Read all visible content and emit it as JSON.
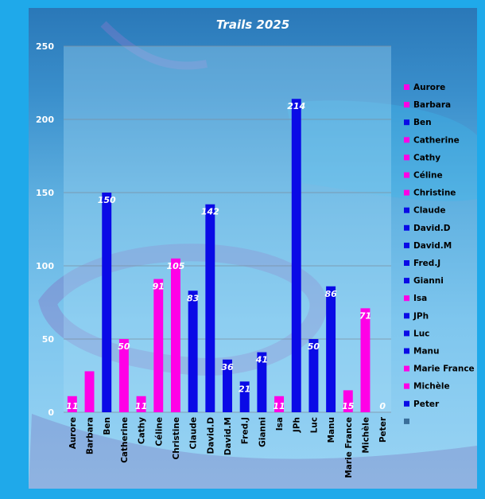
{
  "chart_data": {
    "type": "bar",
    "title": "Trails 2025",
    "xlabel": "",
    "ylabel": "",
    "ylim": [
      0,
      250
    ],
    "yticks": [
      0,
      50,
      100,
      150,
      200,
      250
    ],
    "grid": true,
    "legend_position": "right",
    "categories": [
      "Aurore",
      "Barbara",
      "Ben",
      "Catherine",
      "Cathy",
      "Céline",
      "Christine",
      "Claude",
      "David.D",
      "David.M",
      "Fred.J",
      "Gianni",
      "Isa",
      "JPh",
      "Luc",
      "Manu",
      "Marie France",
      "Michèle",
      "Peter"
    ],
    "values": [
      11,
      28,
      150,
      50,
      11,
      91,
      105,
      83,
      142,
      36,
      21,
      41,
      11,
      214,
      50,
      86,
      15,
      71,
      0
    ],
    "data_labels": [
      "11",
      "",
      "150",
      "50",
      "11",
      "91",
      "105",
      "83",
      "142",
      "36",
      "21",
      "41",
      "11",
      "214",
      "50",
      "86",
      "15",
      "71",
      "0"
    ],
    "bar_colors": [
      "#ff00e6",
      "#ff00e6",
      "#0a0ae6",
      "#ff00e6",
      "#ff00e6",
      "#ff00e6",
      "#ff00e6",
      "#0a0ae6",
      "#0a0ae6",
      "#0a0ae6",
      "#0a0ae6",
      "#0a0ae6",
      "#ff00e6",
      "#0a0ae6",
      "#0a0ae6",
      "#0a0ae6",
      "#ff00e6",
      "#ff00e6",
      "#0a0ae6"
    ],
    "legend": [
      "Aurore",
      "Barbara",
      "Ben",
      "Catherine",
      "Cathy",
      "Céline",
      "Christine",
      "Claude",
      "David.D",
      "David.M",
      "Fred.J",
      "Gianni",
      "Isa",
      "JPh",
      "Luc",
      "Manu",
      "Marie France",
      "Michèle",
      "Peter",
      ""
    ]
  },
  "colors": {
    "female": "#ff00e6",
    "male": "#0a0ae6",
    "frame": "#1fa9ea"
  }
}
